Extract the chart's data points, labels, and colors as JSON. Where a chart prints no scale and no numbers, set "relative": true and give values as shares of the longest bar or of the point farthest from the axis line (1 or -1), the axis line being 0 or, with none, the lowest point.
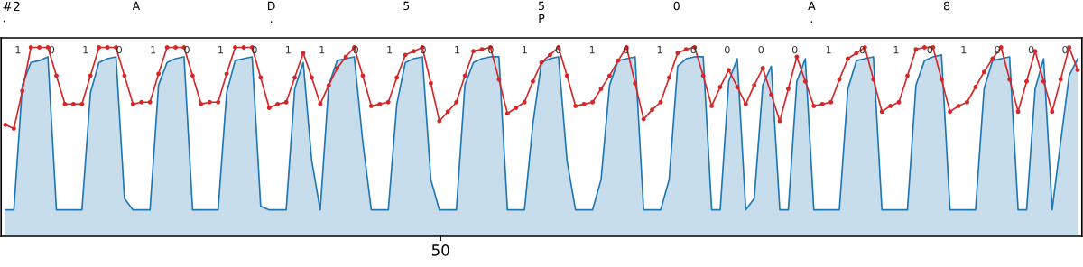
{
  "chart_data": {
    "type": "line",
    "relative": true,
    "legend": false,
    "categories": [
      null,
      null,
      null,
      null,
      null,
      null,
      null,
      null,
      null,
      null,
      null,
      null,
      null,
      null,
      null,
      null,
      null,
      null,
      null,
      null,
      null,
      null,
      null,
      null,
      null,
      null,
      null,
      null,
      null,
      null,
      null,
      null,
      null,
      null,
      null,
      null,
      null,
      null,
      null,
      null,
      null,
      null,
      null,
      null,
      null,
      null,
      null,
      null,
      null,
      null,
      null,
      null,
      null,
      null,
      null,
      null,
      null,
      null,
      null,
      null,
      null,
      null,
      null,
      null,
      null,
      null,
      null,
      null,
      null,
      null,
      null,
      null,
      null,
      null,
      null,
      null,
      null,
      null,
      null,
      null,
      null,
      null,
      null,
      null,
      null,
      null,
      null,
      null,
      null,
      null,
      null,
      null,
      null,
      null,
      null,
      null,
      null,
      null,
      null,
      null,
      null,
      null,
      null,
      null,
      null,
      null,
      null,
      null,
      null,
      null,
      null,
      null,
      null,
      null,
      null,
      null,
      null,
      null,
      null,
      null,
      null,
      null,
      null,
      null,
      null,
      null,
      null
    ],
    "annotations": [
      "#2\n.",
      "50",
      {
        "text": "A"
      },
      {
        "text": "D\n."
      },
      {
        "text": "5"
      },
      {
        "text": "5\nP"
      },
      {
        "text": "0"
      },
      {
        "text": "A\n."
      },
      {
        "text": "8"
      },
      {
        "text": "1"
      },
      {
        "text": "0"
      },
      {
        "text": "1"
      },
      {
        "text": "0"
      },
      {
        "text": "1"
      },
      {
        "text": "0"
      },
      {
        "text": "1"
      },
      {
        "text": "0"
      },
      {
        "text": "1"
      },
      {
        "text": "1"
      },
      {
        "text": "0"
      },
      {
        "text": "1"
      },
      {
        "text": "0"
      },
      {
        "text": "1"
      },
      {
        "text": "0"
      },
      {
        "text": "1"
      },
      {
        "text": "0"
      },
      {
        "text": "1"
      },
      {
        "text": "0"
      },
      {
        "text": "1"
      },
      {
        "text": "0"
      },
      {
        "text": "0"
      },
      {
        "text": "0"
      },
      {
        "text": "0"
      },
      {
        "text": "1"
      },
      {
        "text": "0"
      },
      {
        "text": "1"
      },
      {
        "text": "0"
      },
      {
        "text": "1"
      },
      {
        "text": "0"
      },
      {
        "text": "0"
      },
      {
        "text": "0"
      }
    ],
    "series": [
      {
        "type": "area",
        "color": "#1f77b4",
        "values": [
          0.14,
          0.14,
          0.8,
          0.92,
          0.93,
          0.95,
          0.14,
          0.14,
          0.14,
          0.14,
          0.76,
          0.92,
          0.94,
          0.95,
          0.2,
          0.14,
          0.14,
          0.14,
          0.8,
          0.92,
          0.94,
          0.95,
          0.14,
          0.14,
          0.14,
          0.14,
          0.76,
          0.93,
          0.94,
          0.95,
          0.16,
          0.14,
          0.14,
          0.14,
          0.78,
          0.92,
          0.4,
          0.14,
          0.8,
          0.93,
          0.94,
          0.95,
          0.5,
          0.14,
          0.14,
          0.14,
          0.7,
          0.92,
          0.94,
          0.95,
          0.3,
          0.14,
          0.14,
          0.14,
          0.8,
          0.92,
          0.94,
          0.95,
          0.95,
          0.14,
          0.14,
          0.14,
          0.6,
          0.92,
          0.94,
          0.95,
          0.4,
          0.14,
          0.14,
          0.14,
          0.3,
          0.8,
          0.93,
          0.94,
          0.95,
          0.14,
          0.14,
          0.14,
          0.3,
          0.9,
          0.94,
          0.95,
          0.95,
          0.14,
          0.14,
          0.82,
          0.94,
          0.14,
          0.2,
          0.8,
          0.9,
          0.14,
          0.14,
          0.82,
          0.94,
          0.14,
          0.14,
          0.14,
          0.14,
          0.78,
          0.93,
          0.94,
          0.95,
          0.14,
          0.14,
          0.14,
          0.14,
          0.8,
          0.93,
          0.95,
          0.96,
          0.14,
          0.14,
          0.14,
          0.14,
          0.78,
          0.93,
          0.94,
          0.95,
          0.14,
          0.14,
          0.78,
          0.94,
          0.14,
          0.5,
          0.85,
          0.94
        ]
      },
      {
        "color": "#d62728",
        "marker": "circle",
        "values": [
          0.59,
          0.57,
          0.77,
          1.0,
          1.0,
          1.0,
          0.85,
          0.7,
          0.7,
          0.7,
          0.85,
          1.0,
          1.0,
          1.0,
          0.85,
          0.7,
          0.71,
          0.71,
          0.86,
          1.0,
          1.0,
          1.0,
          0.85,
          0.7,
          0.71,
          0.71,
          0.86,
          1.0,
          1.0,
          1.0,
          0.84,
          0.68,
          0.7,
          0.71,
          0.84,
          0.97,
          0.84,
          0.7,
          0.8,
          0.89,
          0.95,
          1.0,
          0.85,
          0.69,
          0.7,
          0.71,
          0.84,
          0.96,
          0.98,
          1.0,
          0.81,
          0.61,
          0.66,
          0.71,
          0.85,
          0.98,
          0.99,
          1.0,
          0.83,
          0.65,
          0.68,
          0.71,
          0.82,
          0.92,
          0.96,
          1.0,
          0.85,
          0.69,
          0.7,
          0.71,
          0.78,
          0.85,
          0.93,
          1.0,
          0.81,
          0.62,
          0.67,
          0.71,
          0.84,
          0.97,
          0.99,
          1.0,
          0.85,
          0.69,
          0.79,
          0.88,
          0.79,
          0.7,
          0.8,
          0.89,
          0.75,
          0.61,
          0.78,
          0.95,
          0.82,
          0.69,
          0.7,
          0.71,
          0.83,
          0.94,
          0.97,
          1.0,
          0.83,
          0.66,
          0.69,
          0.71,
          0.85,
          0.99,
          1.0,
          1.0,
          0.83,
          0.66,
          0.69,
          0.71,
          0.79,
          0.87,
          0.94,
          1.0,
          0.83,
          0.66,
          0.82,
          0.98,
          0.82,
          0.66,
          0.83,
          1.0,
          0.88
        ]
      }
    ]
  }
}
